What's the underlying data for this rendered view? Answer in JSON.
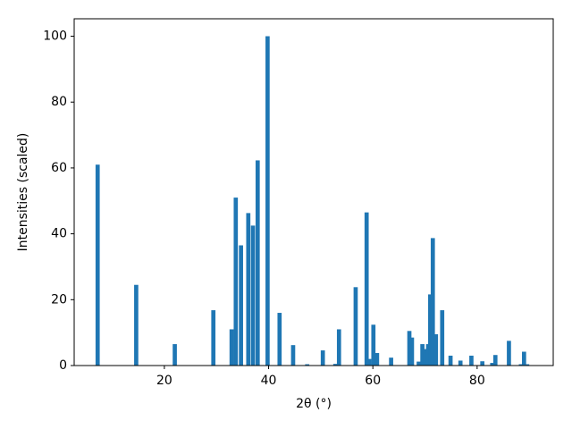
{
  "chart_data": {
    "type": "bar",
    "color": "#1f77b4",
    "xlabel": "2θ (°)",
    "ylabel": "Intensities (scaled)",
    "x": [
      7.2,
      14.6,
      22.0,
      29.4,
      32.9,
      33.7,
      34.7,
      36.1,
      37.0,
      37.9,
      39.8,
      42.1,
      44.7,
      47.4,
      50.4,
      52.8,
      53.5,
      56.7,
      58.8,
      59.3,
      60.1,
      60.8,
      63.5,
      67.0,
      67.5,
      68.8,
      69.5,
      70.1,
      70.6,
      71.0,
      71.5,
      72.1,
      73.3,
      74.9,
      76.8,
      78.9,
      81.0,
      82.9,
      83.5,
      86.1,
      88.4,
      89.0,
      89.6
    ],
    "values": [
      61,
      24.5,
      6.5,
      16.8,
      11,
      51,
      36.5,
      46.3,
      42.5,
      62.3,
      100,
      16,
      6.2,
      0.4,
      4.6,
      0.5,
      11,
      23.8,
      46.5,
      2,
      12.4,
      3.8,
      2.4,
      10.5,
      8.5,
      1.2,
      6.5,
      5,
      6.5,
      21.6,
      38.7,
      9.5,
      16.8,
      3,
      1.5,
      3,
      1.3,
      0.8,
      3.2,
      7.5,
      0.4,
      4.2,
      0.4
    ],
    "xlim": [
      2.7,
      94.6
    ],
    "xticks": [
      20,
      40,
      60,
      80
    ],
    "ylim": [
      0,
      105.3
    ],
    "yticks": [
      0,
      20,
      40,
      60,
      80,
      100
    ]
  }
}
